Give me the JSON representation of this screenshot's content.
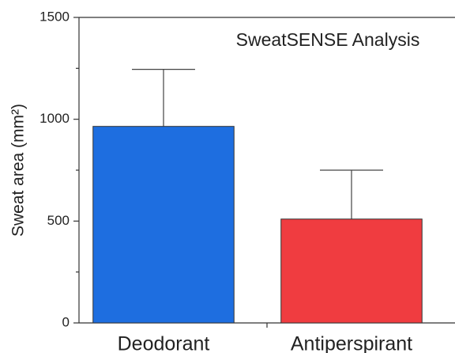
{
  "chart_data": {
    "type": "bar",
    "title": "SweatSENSE Analysis",
    "y_label": "Sweat area (mm²)",
    "categories": [
      "Deodorant",
      "Antiperspirant"
    ],
    "series": [
      {
        "name": "Sweat area",
        "colors": [
          "#1e6ee0",
          "#f03c40"
        ],
        "values": [
          965,
          510
        ],
        "errors": [
          280,
          240
        ]
      }
    ],
    "ylim": [
      0,
      1500
    ],
    "yticks": [
      0,
      500,
      1000,
      1500
    ],
    "yminorticks": [
      250,
      750,
      1250
    ],
    "grid": false
  }
}
